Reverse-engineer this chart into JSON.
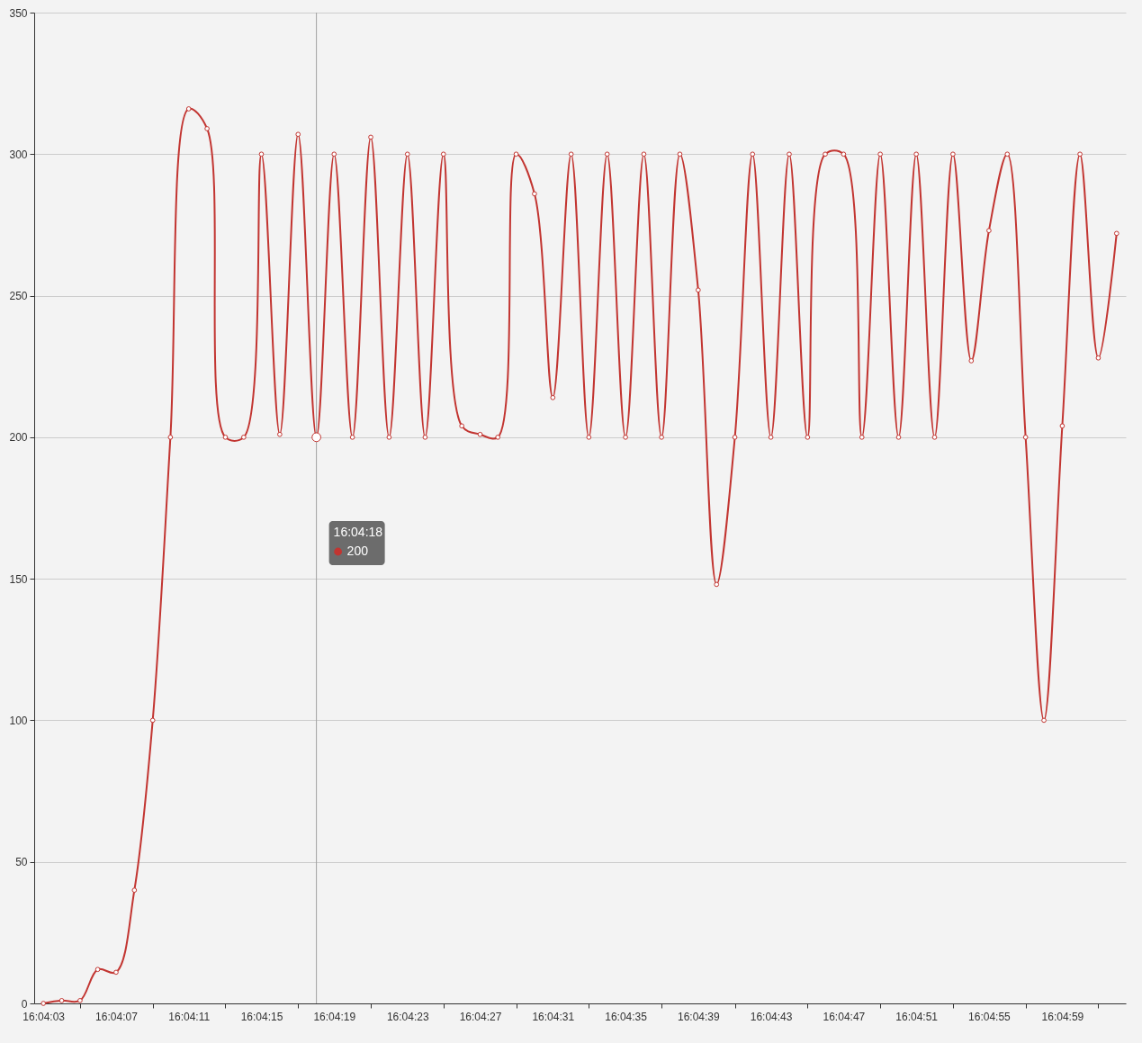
{
  "chart_data": {
    "type": "line",
    "x": [
      16.0675,
      16.06778,
      16.06806,
      16.06833,
      16.06861,
      16.06889,
      16.06917,
      16.06944,
      16.06972,
      16.07,
      16.07028,
      16.07056,
      16.07083,
      16.07111,
      16.07139,
      16.07167,
      16.07194,
      16.07222,
      16.0725,
      16.07278,
      16.07306,
      16.07333,
      16.07361,
      16.07389,
      16.07417,
      16.07444,
      16.07472,
      16.075,
      16.07528,
      16.07556,
      16.07583,
      16.07611,
      16.07639,
      16.07667,
      16.07694,
      16.07722,
      16.0775,
      16.07778,
      16.07806,
      16.07833,
      16.07861,
      16.07889,
      16.07917,
      16.07944,
      16.07972,
      16.08,
      16.08028,
      16.08056,
      16.08083,
      16.08111,
      16.08139,
      16.08167,
      16.08194,
      16.08222,
      16.0825,
      16.08278,
      16.08306,
      16.08333,
      16.08361,
      16.08389
    ],
    "series": [
      {
        "color": "#c23531",
        "values": [
          0,
          1,
          1,
          12,
          11,
          40,
          100,
          200,
          316,
          309,
          200,
          200,
          300,
          201,
          307,
          200,
          300,
          200,
          306,
          200,
          300,
          200,
          300,
          204,
          201,
          200,
          300,
          286,
          214,
          300,
          200,
          300,
          200,
          300,
          200,
          300,
          252,
          148,
          200,
          300,
          200,
          300,
          200,
          300,
          300,
          200,
          300,
          200,
          300,
          200,
          300,
          227,
          273,
          300,
          200,
          100,
          204,
          300,
          228,
          272
        ]
      }
    ],
    "xlim": [
      16.06736,
      16.08403
    ],
    "xticks": [
      {
        "value": 16.0675,
        "label": "16:04:03"
      },
      {
        "value": 16.06806,
        "label": null
      },
      {
        "value": 16.06861,
        "label": "16:04:07"
      },
      {
        "value": 16.06917,
        "label": null
      },
      {
        "value": 16.06972,
        "label": "16:04:11"
      },
      {
        "value": 16.07028,
        "label": null
      },
      {
        "value": 16.07083,
        "label": "16:04:15"
      },
      {
        "value": 16.07139,
        "label": null
      },
      {
        "value": 16.07194,
        "label": "16:04:19"
      },
      {
        "value": 16.0725,
        "label": null
      },
      {
        "value": 16.07306,
        "label": "16:04:23"
      },
      {
        "value": 16.07361,
        "label": null
      },
      {
        "value": 16.07417,
        "label": "16:04:27"
      },
      {
        "value": 16.07472,
        "label": null
      },
      {
        "value": 16.07528,
        "label": "16:04:31"
      },
      {
        "value": 16.07583,
        "label": null
      },
      {
        "value": 16.07639,
        "label": "16:04:35"
      },
      {
        "value": 16.07694,
        "label": null
      },
      {
        "value": 16.0775,
        "label": "16:04:39"
      },
      {
        "value": 16.07806,
        "label": null
      },
      {
        "value": 16.07861,
        "label": "16:04:43"
      },
      {
        "value": 16.07917,
        "label": null
      },
      {
        "value": 16.07972,
        "label": "16:04:47"
      },
      {
        "value": 16.08028,
        "label": null
      },
      {
        "value": 16.08083,
        "label": "16:04:51"
      },
      {
        "value": 16.08139,
        "label": null
      },
      {
        "value": 16.08194,
        "label": "16:04:55"
      },
      {
        "value": 16.0825,
        "label": null
      },
      {
        "value": 16.08306,
        "label": "16:04:59"
      },
      {
        "value": 16.08361,
        "label": null
      }
    ],
    "ylim": [
      0,
      350
    ],
    "yticks": [
      0,
      50,
      100,
      150,
      200,
      250,
      300,
      350
    ],
    "grid": "y",
    "marker": "circle",
    "ref_lines": [
      {
        "axis": "x",
        "value": 16.07167,
        "color": "#a0a0a0"
      }
    ],
    "annotations": [
      "16:04:18",
      "200"
    ]
  }
}
